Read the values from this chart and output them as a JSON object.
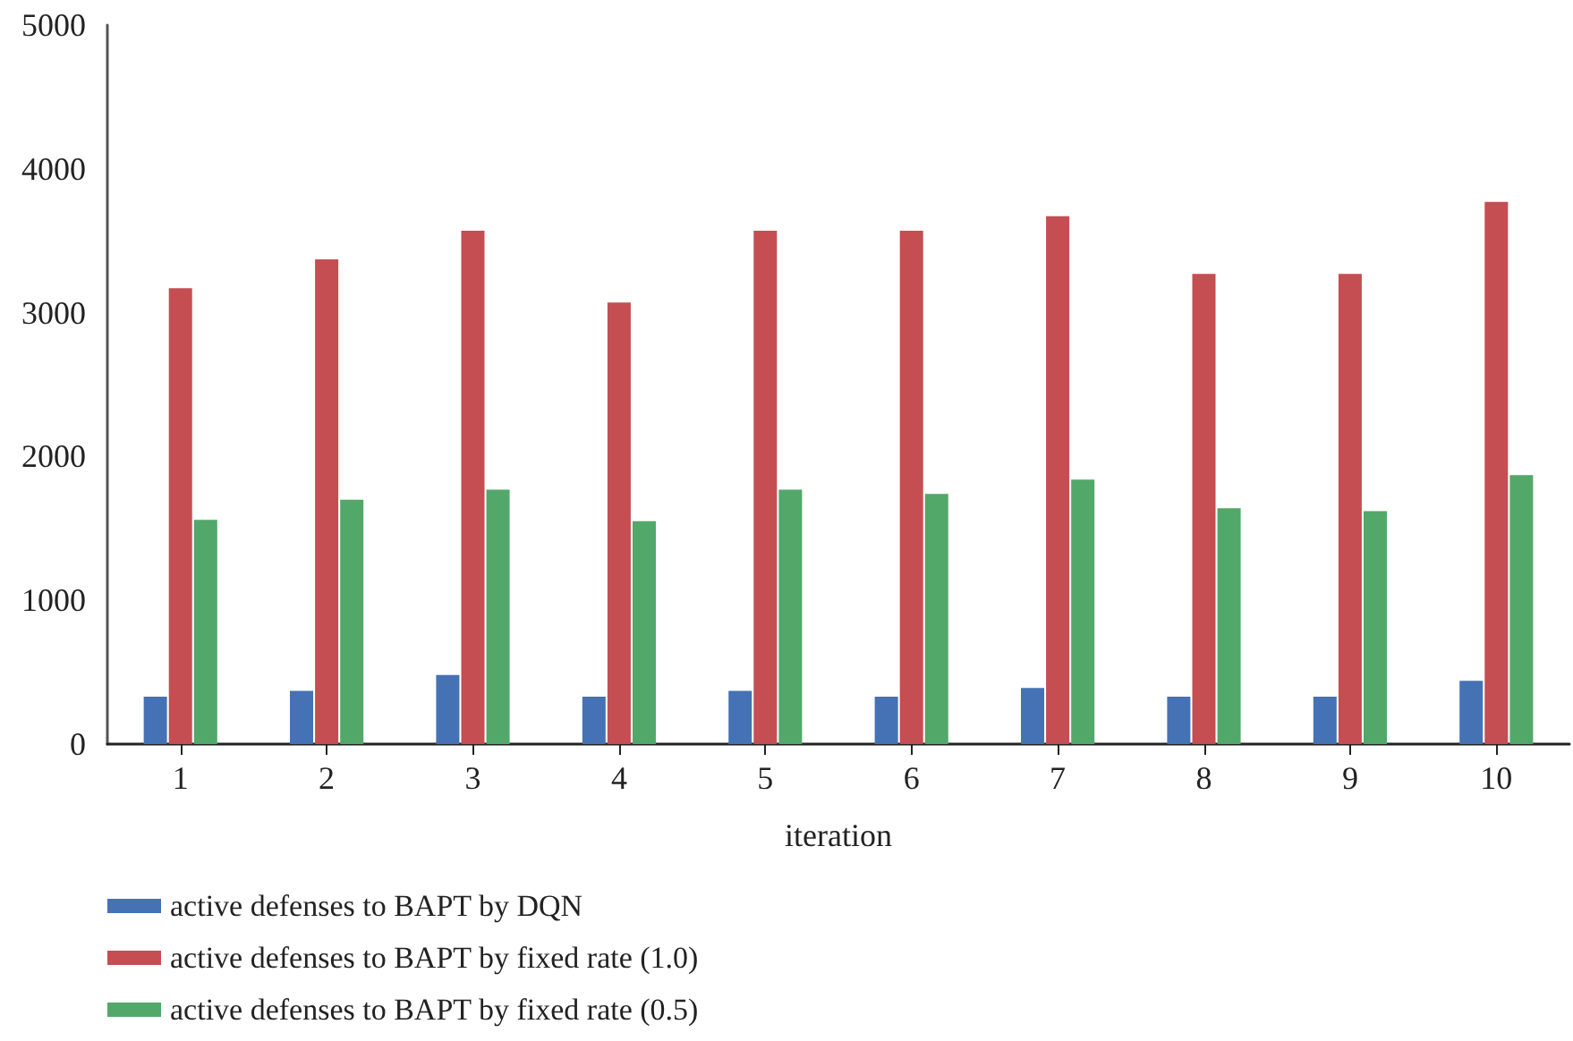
{
  "chart_data": {
    "type": "bar",
    "xlabel": "iteration",
    "categories": [
      "1",
      "2",
      "3",
      "4",
      "5",
      "6",
      "7",
      "8",
      "9",
      "10"
    ],
    "series": [
      {
        "name": "active defenses to BAPT by DQN",
        "color": "#4472b4",
        "values": [
          330,
          370,
          480,
          330,
          370,
          330,
          390,
          330,
          330,
          440
        ]
      },
      {
        "name": "active defenses to BAPT by fixed rate (1.0)",
        "color": "#c44e52",
        "values": [
          3170,
          3370,
          3570,
          3070,
          3570,
          3570,
          3670,
          3270,
          3270,
          3770
        ]
      },
      {
        "name": "active defenses to BAPT by fixed rate (0.5)",
        "color": "#52a869",
        "values": [
          1560,
          1700,
          1770,
          1550,
          1770,
          1740,
          1840,
          1640,
          1620,
          1870
        ]
      }
    ],
    "ylim": [
      0,
      5000
    ],
    "yticks": [
      0,
      1000,
      2000,
      3000,
      4000,
      5000
    ],
    "grid": false,
    "legend": "bottom left"
  }
}
